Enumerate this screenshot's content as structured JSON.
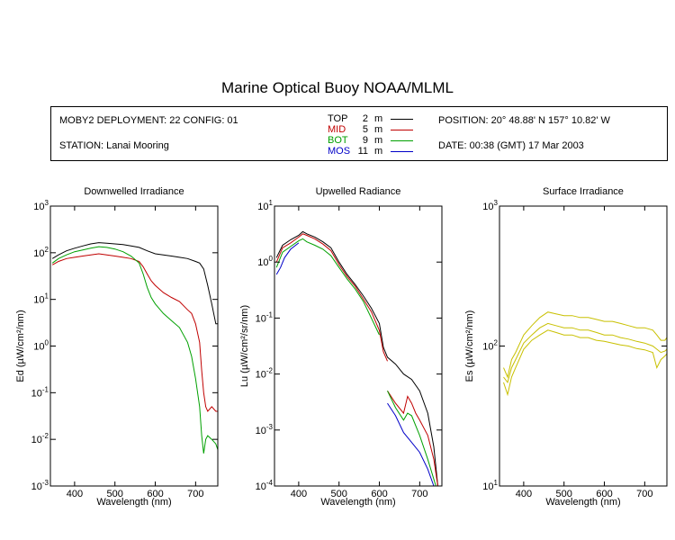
{
  "title": "Marine Optical Buoy NOAA/MLML",
  "info": {
    "deployment": "MOBY2 DEPLOYMENT: 22 CONFIG: 01",
    "station": "STATION: Lanai Mooring",
    "position": "POSITION: 20° 48.88' N   157° 10.82' W",
    "date": "DATE: 00:38 (GMT) 17 Mar 2003"
  },
  "legend": [
    {
      "name": "TOP",
      "depth": "2",
      "unit": "m",
      "color": "#000000"
    },
    {
      "name": "MID",
      "depth": "5",
      "unit": "m",
      "color": "#c00000"
    },
    {
      "name": "BOT",
      "depth": "9",
      "unit": "m",
      "color": "#00a000"
    },
    {
      "name": "MOS",
      "depth": "11",
      "unit": "m",
      "color": "#0000c8"
    }
  ],
  "chart_data": [
    {
      "type": "line",
      "title": "Downwelled Irradiance",
      "xlabel": "Wavelength (nm)",
      "ylabel": "Ed  (µW/cm²/nm)",
      "xlim": [
        340,
        755
      ],
      "ylim": [
        0.001,
        1000
      ],
      "yscale": "log",
      "xticks": [
        400,
        500,
        600,
        700
      ],
      "yticks": [
        "10^-3",
        "10^-2",
        "10^-1",
        "10^0",
        "10^1",
        "10^2",
        "10^3"
      ],
      "series": [
        {
          "name": "TOP",
          "color": "#000000",
          "x": [
            345,
            360,
            380,
            400,
            420,
            440,
            460,
            480,
            500,
            520,
            540,
            560,
            580,
            600,
            620,
            640,
            660,
            680,
            700,
            710,
            720,
            730,
            740,
            750,
            755
          ],
          "y": [
            75,
            90,
            110,
            125,
            140,
            155,
            165,
            160,
            155,
            150,
            140,
            130,
            110,
            95,
            90,
            85,
            80,
            75,
            65,
            60,
            45,
            20,
            8,
            3,
            3
          ]
        },
        {
          "name": "MID",
          "color": "#c00000",
          "x": [
            345,
            360,
            380,
            400,
            420,
            440,
            460,
            480,
            500,
            520,
            540,
            560,
            570,
            580,
            590,
            600,
            620,
            640,
            660,
            680,
            690,
            700,
            710,
            715,
            720,
            725,
            730,
            740,
            750,
            755
          ],
          "y": [
            55,
            65,
            75,
            80,
            85,
            90,
            95,
            90,
            85,
            80,
            75,
            65,
            50,
            35,
            25,
            20,
            14,
            11,
            9,
            6,
            5,
            3,
            1.2,
            0.3,
            0.1,
            0.05,
            0.04,
            0.05,
            0.04,
            0.04
          ]
        },
        {
          "name": "BOT",
          "color": "#00a000",
          "x": [
            345,
            360,
            380,
            400,
            420,
            440,
            460,
            480,
            500,
            520,
            540,
            560,
            570,
            580,
            590,
            600,
            620,
            640,
            660,
            680,
            690,
            700,
            710,
            715,
            720,
            725,
            730,
            740,
            750,
            755
          ],
          "y": [
            60,
            75,
            90,
            105,
            115,
            125,
            135,
            130,
            120,
            105,
            85,
            60,
            35,
            18,
            11,
            8,
            5,
            3.5,
            2.5,
            1.2,
            0.6,
            0.2,
            0.05,
            0.012,
            0.005,
            0.01,
            0.012,
            0.01,
            0.008,
            0.006
          ]
        }
      ]
    },
    {
      "type": "line",
      "title": "Upwelled Radiance",
      "xlabel": "Wavelength (nm)",
      "ylabel": "Lu  (µW/cm²/sr/nm)",
      "xlim": [
        340,
        755
      ],
      "ylim": [
        0.0001,
        10
      ],
      "yscale": "log",
      "xticks": [
        400,
        500,
        600,
        700
      ],
      "yticks": [
        "10^-4",
        "10^-3",
        "10^-2",
        "10^-1",
        "10^0",
        "10^1"
      ],
      "series": [
        {
          "name": "TOP",
          "color": "#000000",
          "x": [
            345,
            360,
            380,
            400,
            410,
            420,
            440,
            460,
            480,
            500,
            520,
            540,
            560,
            580,
            600,
            610,
            620,
            640,
            660,
            680,
            700,
            720,
            735,
            745
          ],
          "y": [
            1.2,
            2.0,
            2.5,
            3.0,
            3.5,
            3.2,
            2.8,
            2.3,
            1.8,
            1.0,
            0.6,
            0.4,
            0.25,
            0.15,
            0.08,
            0.03,
            0.02,
            0.015,
            0.01,
            0.008,
            0.005,
            0.002,
            0.0005,
            0.0001
          ]
        },
        {
          "name": "MID",
          "color": "#c00000",
          "x": [
            345,
            360,
            380,
            400,
            410,
            420,
            440,
            460,
            480,
            500,
            520,
            540,
            560,
            580,
            600,
            610,
            620
          ],
          "y": [
            1.0,
            1.8,
            2.2,
            2.8,
            3.2,
            3.0,
            2.6,
            2.1,
            1.6,
            0.9,
            0.55,
            0.37,
            0.22,
            0.13,
            0.06,
            0.025,
            0.017
          ]
        },
        {
          "name": "MID",
          "color": "#c00000",
          "x": [
            620,
            640,
            660,
            670,
            680,
            690,
            700,
            720,
            735,
            745
          ],
          "y": [
            0.005,
            0.003,
            0.002,
            0.004,
            0.003,
            0.002,
            0.0015,
            0.0008,
            0.0003,
            0.0001
          ]
        },
        {
          "name": "BOT",
          "color": "#00a000",
          "x": [
            345,
            360,
            380,
            400,
            410,
            420,
            440,
            460,
            480,
            500,
            520,
            540,
            560,
            580,
            600
          ],
          "y": [
            0.8,
            1.5,
            1.9,
            2.4,
            2.6,
            2.3,
            2.0,
            1.7,
            1.3,
            0.8,
            0.5,
            0.33,
            0.2,
            0.1,
            0.05
          ]
        },
        {
          "name": "BOT",
          "color": "#00a000",
          "x": [
            620,
            640,
            660,
            670,
            680,
            700,
            720,
            740
          ],
          "y": [
            0.005,
            0.0025,
            0.0015,
            0.002,
            0.0018,
            0.0008,
            0.0003,
            0.0001
          ]
        },
        {
          "name": "MOS",
          "color": "#0000c8",
          "x": [
            345,
            355,
            365,
            380,
            400
          ],
          "y": [
            0.6,
            0.8,
            1.2,
            1.7,
            2.2
          ]
        },
        {
          "name": "MOS",
          "color": "#0000c8",
          "x": [
            620,
            640,
            660,
            680,
            700,
            720,
            735
          ],
          "y": [
            0.003,
            0.0018,
            0.0009,
            0.0006,
            0.0004,
            0.0002,
            0.0001
          ]
        }
      ]
    },
    {
      "type": "line",
      "title": "Surface Irradiance",
      "xlabel": "Wavelength (nm)",
      "ylabel": "Es  (µW/cm²/nm)",
      "xlim": [
        340,
        755
      ],
      "ylim": [
        10,
        1000
      ],
      "yscale": "log",
      "xticks": [
        400,
        500,
        600,
        700
      ],
      "yticks": [
        "10^1",
        "10^2",
        "10^3"
      ],
      "series": [
        {
          "name": "Es",
          "color": "#c8c000",
          "x": [
            350,
            360,
            370,
            380,
            400,
            420,
            440,
            460,
            480,
            500,
            520,
            540,
            560,
            580,
            600,
            620,
            640,
            660,
            680,
            700,
            720,
            730,
            740,
            750,
            755
          ],
          "y": [
            70,
            60,
            80,
            90,
            120,
            140,
            160,
            175,
            170,
            165,
            165,
            160,
            160,
            155,
            150,
            150,
            145,
            140,
            135,
            135,
            130,
            120,
            110,
            110,
            115
          ]
        },
        {
          "name": "Es",
          "color": "#c8c000",
          "x": [
            350,
            360,
            370,
            380,
            400,
            420,
            440,
            460,
            480,
            500,
            520,
            540,
            560,
            580,
            600,
            620,
            640,
            660,
            680,
            700,
            720,
            730,
            740,
            750,
            755
          ],
          "y": [
            60,
            55,
            70,
            80,
            105,
            120,
            135,
            145,
            140,
            135,
            135,
            130,
            130,
            125,
            120,
            120,
            115,
            112,
            108,
            105,
            100,
            95,
            90,
            92,
            95
          ]
        },
        {
          "name": "Es",
          "color": "#c8c000",
          "x": [
            350,
            360,
            370,
            380,
            400,
            420,
            440,
            460,
            480,
            500,
            520,
            540,
            560,
            580,
            600,
            620,
            640,
            660,
            680,
            700,
            720,
            730,
            740,
            750,
            755
          ],
          "y": [
            55,
            45,
            60,
            70,
            95,
            110,
            120,
            130,
            125,
            120,
            120,
            115,
            115,
            110,
            108,
            105,
            102,
            100,
            96,
            94,
            90,
            70,
            80,
            85,
            88
          ]
        }
      ]
    }
  ]
}
